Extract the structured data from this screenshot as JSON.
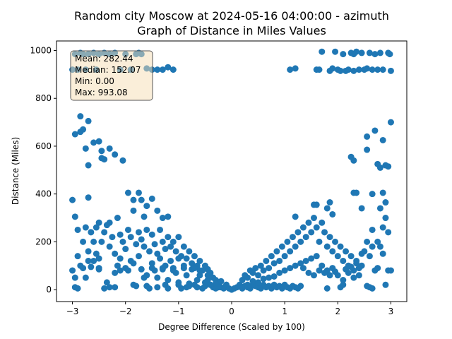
{
  "chart_data": {
    "type": "scatter",
    "title_line1": "Random city Moscow at 2024-05-16 04:00:00  - azimuth",
    "title_line2": "Graph of Distance in Miles Values",
    "xlabel": "Degree Difference (Scaled by 100)",
    "ylabel": "Distance (Miles)",
    "xlim": [
      -3.3,
      3.3
    ],
    "ylim": [
      -50,
      1040
    ],
    "xticks": [
      -3,
      -2,
      -1,
      0,
      1,
      2,
      3
    ],
    "yticks": [
      0,
      200,
      400,
      600,
      800,
      1000
    ],
    "point_color": "#1f77b4",
    "stats_box": {
      "mean": "Mean: 282.44",
      "median": "Median: 152.07",
      "min": "Min: 0.00",
      "max": "Max: 993.08"
    },
    "points": [
      [
        -3.0,
        920
      ],
      [
        -2.95,
        985
      ],
      [
        -2.9,
        920
      ],
      [
        -2.85,
        990
      ],
      [
        -2.8,
        985
      ],
      [
        -2.75,
        920
      ],
      [
        -2.7,
        985
      ],
      [
        -2.6,
        990
      ],
      [
        -2.55,
        920
      ],
      [
        -2.5,
        985
      ],
      [
        -2.4,
        990
      ],
      [
        -2.3,
        985
      ],
      [
        -2.2,
        990
      ],
      [
        -2.1,
        920
      ],
      [
        -2.0,
        985
      ],
      [
        -1.9,
        920
      ],
      [
        -1.8,
        985
      ],
      [
        -1.75,
        990
      ],
      [
        -1.7,
        985
      ],
      [
        -1.6,
        925
      ],
      [
        -1.5,
        920
      ],
      [
        -1.4,
        920
      ],
      [
        -1.3,
        920
      ],
      [
        -1.2,
        930
      ],
      [
        -1.1,
        920
      ],
      [
        1.1,
        920
      ],
      [
        1.2,
        925
      ],
      [
        1.6,
        920
      ],
      [
        1.65,
        920
      ],
      [
        1.7,
        995
      ],
      [
        1.85,
        915
      ],
      [
        1.9,
        925
      ],
      [
        1.95,
        995
      ],
      [
        2.0,
        920
      ],
      [
        2.05,
        915
      ],
      [
        2.1,
        985
      ],
      [
        2.15,
        915
      ],
      [
        2.2,
        920
      ],
      [
        2.25,
        990
      ],
      [
        2.3,
        915
      ],
      [
        2.35,
        995
      ],
      [
        2.4,
        920
      ],
      [
        2.45,
        990
      ],
      [
        2.5,
        920
      ],
      [
        2.55,
        925
      ],
      [
        2.6,
        990
      ],
      [
        2.65,
        920
      ],
      [
        2.7,
        985
      ],
      [
        2.75,
        920
      ],
      [
        2.8,
        990
      ],
      [
        2.85,
        920
      ],
      [
        2.95,
        990
      ],
      [
        3.0,
        915
      ],
      [
        2.98,
        985
      ],
      [
        2.3,
        985
      ],
      [
        -2.95,
        650
      ],
      [
        -2.85,
        725
      ],
      [
        -2.8,
        670
      ],
      [
        -2.75,
        590
      ],
      [
        -2.7,
        705
      ],
      [
        -2.6,
        615
      ],
      [
        -2.5,
        620
      ],
      [
        -2.45,
        580
      ],
      [
        -2.4,
        545
      ],
      [
        -2.3,
        590
      ],
      [
        -2.2,
        565
      ],
      [
        -2.05,
        540
      ],
      [
        -2.85,
        660
      ],
      [
        -2.7,
        520
      ],
      [
        -2.45,
        550
      ],
      [
        2.25,
        555
      ],
      [
        2.3,
        540
      ],
      [
        2.55,
        640
      ],
      [
        2.55,
        585
      ],
      [
        2.7,
        665
      ],
      [
        2.75,
        525
      ],
      [
        2.8,
        510
      ],
      [
        2.85,
        625
      ],
      [
        2.9,
        520
      ],
      [
        2.95,
        515
      ],
      [
        3.0,
        700
      ],
      [
        -3.0,
        375
      ],
      [
        -2.95,
        305
      ],
      [
        -2.7,
        385
      ],
      [
        -2.5,
        280
      ],
      [
        -2.3,
        280
      ],
      [
        -2.15,
        300
      ],
      [
        -1.95,
        405
      ],
      [
        -1.85,
        375
      ],
      [
        -1.75,
        405
      ],
      [
        -1.7,
        375
      ],
      [
        -1.6,
        350
      ],
      [
        -1.4,
        330
      ],
      [
        -1.3,
        300
      ],
      [
        -1.2,
        305
      ],
      [
        -1.5,
        380
      ],
      [
        -1.85,
        330
      ],
      [
        -1.65,
        305
      ],
      [
        1.55,
        355
      ],
      [
        1.6,
        355
      ],
      [
        1.8,
        340
      ],
      [
        1.85,
        365
      ],
      [
        1.9,
        315
      ],
      [
        2.3,
        405
      ],
      [
        2.35,
        405
      ],
      [
        2.45,
        340
      ],
      [
        2.85,
        405
      ],
      [
        2.9,
        365
      ],
      [
        2.8,
        340
      ],
      [
        2.65,
        400
      ],
      [
        1.2,
        305
      ],
      [
        -3.0,
        80
      ],
      [
        -2.95,
        50
      ],
      [
        -2.95,
        10
      ],
      [
        -2.9,
        5
      ],
      [
        -2.85,
        100
      ],
      [
        -2.8,
        90
      ],
      [
        -2.75,
        50
      ],
      [
        -2.7,
        120
      ],
      [
        -2.65,
        95
      ],
      [
        -2.55,
        150
      ],
      [
        -2.5,
        85
      ],
      [
        -2.4,
        5
      ],
      [
        -2.35,
        30
      ],
      [
        -2.3,
        10
      ],
      [
        -2.2,
        10
      ],
      [
        -2.1,
        80
      ],
      [
        -2.0,
        90
      ],
      [
        -1.9,
        120
      ],
      [
        -1.85,
        20
      ],
      [
        -1.8,
        15
      ],
      [
        -1.7,
        85
      ],
      [
        -1.65,
        50
      ],
      [
        -1.6,
        15
      ],
      [
        -1.55,
        5
      ],
      [
        -1.5,
        90
      ],
      [
        -1.45,
        80
      ],
      [
        -1.4,
        10
      ],
      [
        -1.3,
        85
      ],
      [
        -1.25,
        20
      ],
      [
        -1.2,
        5
      ],
      [
        -1.1,
        90
      ],
      [
        -1.0,
        20
      ],
      [
        -0.95,
        5
      ],
      [
        -0.9,
        90
      ],
      [
        -0.85,
        10
      ],
      [
        -0.8,
        15
      ],
      [
        -0.75,
        85
      ],
      [
        -0.7,
        20
      ],
      [
        -0.65,
        10
      ],
      [
        -0.6,
        80
      ],
      [
        -0.55,
        5
      ],
      [
        -0.5,
        15
      ],
      [
        -0.45,
        85
      ],
      [
        -0.4,
        20
      ],
      [
        -0.35,
        10
      ],
      [
        -0.3,
        5
      ],
      [
        -0.25,
        15
      ],
      [
        -0.2,
        10
      ],
      [
        -0.15,
        5
      ],
      [
        -0.1,
        20
      ],
      [
        -0.05,
        5
      ],
      [
        0.0,
        0
      ],
      [
        -2.9,
        250
      ],
      [
        -2.8,
        200
      ],
      [
        -2.75,
        260
      ],
      [
        -2.7,
        160
      ],
      [
        -2.65,
        240
      ],
      [
        -2.6,
        200
      ],
      [
        -2.55,
        260
      ],
      [
        -2.45,
        200
      ],
      [
        -2.4,
        240
      ],
      [
        -2.35,
        270
      ],
      [
        -2.3,
        180
      ],
      [
        -2.25,
        220
      ],
      [
        -2.2,
        150
      ],
      [
        -2.1,
        230
      ],
      [
        -2.05,
        200
      ],
      [
        -2.0,
        170
      ],
      [
        -1.95,
        250
      ],
      [
        -1.9,
        220
      ],
      [
        -1.8,
        190
      ],
      [
        -1.75,
        240
      ],
      [
        -1.7,
        210
      ],
      [
        -1.65,
        180
      ],
      [
        -1.6,
        250
      ],
      [
        -1.55,
        160
      ],
      [
        -1.5,
        230
      ],
      [
        -1.45,
        190
      ],
      [
        -1.4,
        150
      ],
      [
        -1.35,
        250
      ],
      [
        -1.3,
        200
      ],
      [
        -1.25,
        170
      ],
      [
        -1.2,
        220
      ],
      [
        -1.15,
        180
      ],
      [
        -1.1,
        200
      ],
      [
        -1.05,
        160
      ],
      [
        -1.0,
        220
      ],
      [
        -0.95,
        140
      ],
      [
        -0.9,
        180
      ],
      [
        -0.85,
        130
      ],
      [
        -0.8,
        160
      ],
      [
        -0.75,
        110
      ],
      [
        -0.7,
        140
      ],
      [
        -0.65,
        100
      ],
      [
        -0.6,
        120
      ],
      [
        -0.55,
        80
      ],
      [
        -0.5,
        100
      ],
      [
        -0.45,
        60
      ],
      [
        -0.4,
        70
      ],
      [
        -0.35,
        50
      ],
      [
        -0.3,
        40
      ],
      [
        -0.25,
        30
      ],
      [
        -0.2,
        35
      ],
      [
        -0.1,
        20
      ],
      [
        -1.35,
        130
      ],
      [
        -1.15,
        120
      ],
      [
        -1.0,
        130
      ],
      [
        -0.9,
        100
      ],
      [
        -0.7,
        90
      ],
      [
        -0.6,
        60
      ],
      [
        -0.45,
        40
      ],
      [
        -0.3,
        25
      ],
      [
        -2.15,
        100
      ],
      [
        -1.75,
        140
      ],
      [
        -1.5,
        110
      ],
      [
        -1.25,
        100
      ],
      [
        -1.05,
        70
      ],
      [
        -0.85,
        60
      ],
      [
        -0.65,
        40
      ],
      [
        -0.5,
        30
      ],
      [
        -0.4,
        20
      ],
      [
        -0.25,
        10
      ],
      [
        -2.6,
        120
      ],
      [
        -2.5,
        90
      ],
      [
        -2.2,
        70
      ],
      [
        -1.95,
        80
      ],
      [
        -1.6,
        60
      ],
      [
        -1.4,
        50
      ],
      [
        -1.2,
        40
      ],
      [
        -1.0,
        30
      ],
      [
        -0.8,
        25
      ],
      [
        -2.9,
        140
      ],
      [
        -2.5,
        130
      ],
      [
        -2.1,
        130
      ],
      [
        -1.85,
        110
      ],
      [
        -1.3,
        90
      ],
      [
        -1.1,
        80
      ],
      [
        0.05,
        5
      ],
      [
        0.1,
        10
      ],
      [
        0.15,
        20
      ],
      [
        0.2,
        5
      ],
      [
        0.25,
        15
      ],
      [
        0.3,
        10
      ],
      [
        0.35,
        5
      ],
      [
        0.4,
        20
      ],
      [
        0.45,
        15
      ],
      [
        0.5,
        10
      ],
      [
        0.55,
        5
      ],
      [
        0.6,
        20
      ],
      [
        0.65,
        10
      ],
      [
        0.7,
        15
      ],
      [
        0.75,
        5
      ],
      [
        0.8,
        20
      ],
      [
        0.85,
        10
      ],
      [
        0.9,
        15
      ],
      [
        0.95,
        5
      ],
      [
        1.0,
        20
      ],
      [
        1.05,
        10
      ],
      [
        1.1,
        5
      ],
      [
        1.15,
        15
      ],
      [
        1.2,
        10
      ],
      [
        1.25,
        5
      ],
      [
        1.3,
        15
      ],
      [
        1.8,
        5
      ],
      [
        2.05,
        10
      ],
      [
        2.1,
        20
      ],
      [
        2.55,
        15
      ],
      [
        2.6,
        10
      ],
      [
        2.65,
        5
      ],
      [
        2.9,
        20
      ],
      [
        2.95,
        80
      ],
      [
        3.0,
        80
      ],
      [
        0.2,
        40
      ],
      [
        0.25,
        60
      ],
      [
        0.3,
        50
      ],
      [
        0.35,
        80
      ],
      [
        0.4,
        70
      ],
      [
        0.45,
        90
      ],
      [
        0.5,
        60
      ],
      [
        0.55,
        100
      ],
      [
        0.6,
        80
      ],
      [
        0.65,
        120
      ],
      [
        0.7,
        90
      ],
      [
        0.75,
        140
      ],
      [
        0.8,
        110
      ],
      [
        0.85,
        160
      ],
      [
        0.9,
        120
      ],
      [
        0.95,
        180
      ],
      [
        1.0,
        140
      ],
      [
        1.05,
        200
      ],
      [
        1.1,
        160
      ],
      [
        1.15,
        220
      ],
      [
        1.2,
        180
      ],
      [
        1.25,
        240
      ],
      [
        1.3,
        200
      ],
      [
        1.35,
        260
      ],
      [
        1.4,
        220
      ],
      [
        1.45,
        280
      ],
      [
        1.5,
        240
      ],
      [
        1.55,
        300
      ],
      [
        1.6,
        260
      ],
      [
        1.65,
        200
      ],
      [
        1.7,
        280
      ],
      [
        1.75,
        240
      ],
      [
        1.8,
        180
      ],
      [
        1.85,
        220
      ],
      [
        1.9,
        160
      ],
      [
        1.95,
        200
      ],
      [
        2.0,
        140
      ],
      [
        2.05,
        180
      ],
      [
        2.1,
        120
      ],
      [
        2.15,
        160
      ],
      [
        2.2,
        100
      ],
      [
        2.25,
        140
      ],
      [
        2.3,
        80
      ],
      [
        2.35,
        120
      ],
      [
        2.4,
        60
      ],
      [
        2.45,
        100
      ],
      [
        2.5,
        160
      ],
      [
        2.55,
        200
      ],
      [
        2.6,
        140
      ],
      [
        2.65,
        250
      ],
      [
        2.7,
        80
      ],
      [
        2.75,
        200
      ],
      [
        2.8,
        180
      ],
      [
        2.85,
        260
      ],
      [
        2.9,
        300
      ],
      [
        2.95,
        240
      ],
      [
        0.3,
        20
      ],
      [
        0.4,
        35
      ],
      [
        0.5,
        30
      ],
      [
        0.6,
        45
      ],
      [
        0.7,
        50
      ],
      [
        0.8,
        55
      ],
      [
        0.9,
        70
      ],
      [
        1.0,
        80
      ],
      [
        1.1,
        90
      ],
      [
        1.2,
        100
      ],
      [
        1.3,
        110
      ],
      [
        1.4,
        120
      ],
      [
        1.5,
        130
      ],
      [
        1.6,
        140
      ],
      [
        1.7,
        100
      ],
      [
        1.8,
        80
      ],
      [
        1.9,
        90
      ],
      [
        2.0,
        60
      ],
      [
        2.1,
        40
      ],
      [
        2.2,
        70
      ],
      [
        2.3,
        50
      ],
      [
        2.4,
        90
      ],
      [
        1.35,
        90
      ],
      [
        1.45,
        70
      ],
      [
        1.55,
        60
      ],
      [
        1.65,
        80
      ],
      [
        1.75,
        70
      ],
      [
        1.85,
        60
      ],
      [
        1.95,
        75
      ],
      [
        2.15,
        85
      ],
      [
        2.25,
        95
      ],
      [
        2.35,
        110
      ],
      [
        2.45,
        150
      ],
      [
        2.65,
        180
      ],
      [
        2.75,
        90
      ],
      [
        2.85,
        150
      ]
    ]
  }
}
